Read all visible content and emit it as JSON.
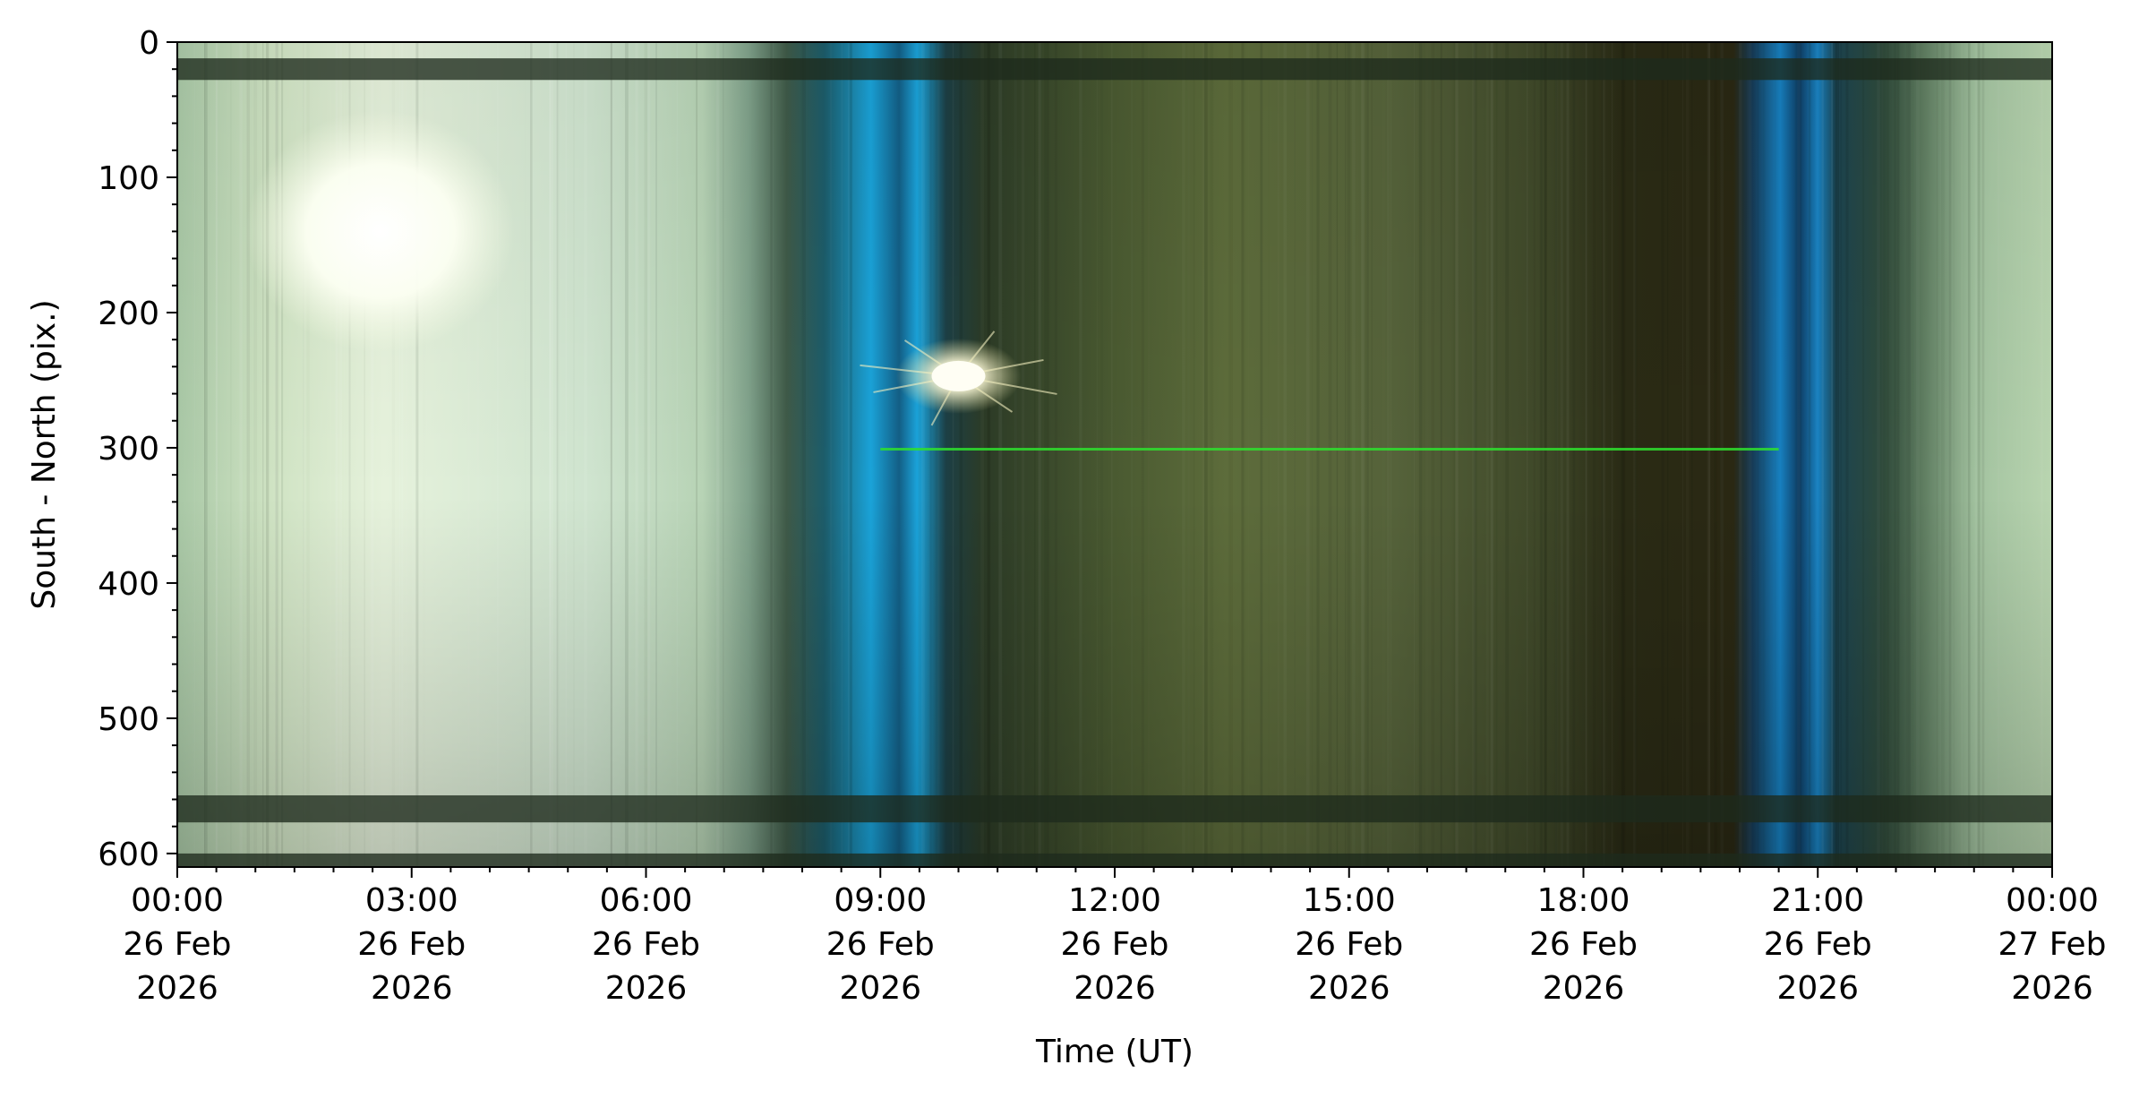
{
  "chart_data": {
    "type": "heatmap",
    "title": "",
    "xlabel": "Time (UT)",
    "ylabel": "South - North (pix.)",
    "x_range": [
      "2026-02-26 00:00",
      "2026-02-27 00:00"
    ],
    "ylim": [
      610,
      0
    ],
    "y_inverted": true,
    "y_ticks": [
      0,
      100,
      200,
      300,
      400,
      500,
      600
    ],
    "y_minor_tick_step": 20,
    "x_ticks": [
      {
        "time": "00:00",
        "day": "26 Feb",
        "year": "2026"
      },
      {
        "time": "03:00",
        "day": "26 Feb",
        "year": "2026"
      },
      {
        "time": "06:00",
        "day": "26 Feb",
        "year": "2026"
      },
      {
        "time": "09:00",
        "day": "26 Feb",
        "year": "2026"
      },
      {
        "time": "12:00",
        "day": "26 Feb",
        "year": "2026"
      },
      {
        "time": "15:00",
        "day": "26 Feb",
        "year": "2026"
      },
      {
        "time": "18:00",
        "day": "26 Feb",
        "year": "2026"
      },
      {
        "time": "21:00",
        "day": "26 Feb",
        "year": "2026"
      },
      {
        "time": "00:00",
        "day": "27 Feb",
        "year": "2026"
      }
    ],
    "x_minor_ticks_per_major": 6,
    "grid": false,
    "features": {
      "bright_blob_top_left": {
        "hour": 2.6,
        "pix": 140
      },
      "star_burst": {
        "hour": 10.0,
        "pix": 247
      },
      "green_line": {
        "pix": 301,
        "hour_start": 9.0,
        "hour_end": 20.5
      },
      "dark_bands_pix": [
        [
          12,
          28
        ],
        [
          557,
          577
        ],
        [
          600,
          610
        ]
      ],
      "blue_twilight_bands_hours": [
        [
          8.2,
          9.0
        ],
        [
          20.3,
          21.0
        ]
      ]
    },
    "colors": {
      "blue_band": "#1a9fd8",
      "green_line": "#2ee02e",
      "bright_area": "#f6fbe6",
      "dark_band": "#1e2a1c"
    }
  }
}
